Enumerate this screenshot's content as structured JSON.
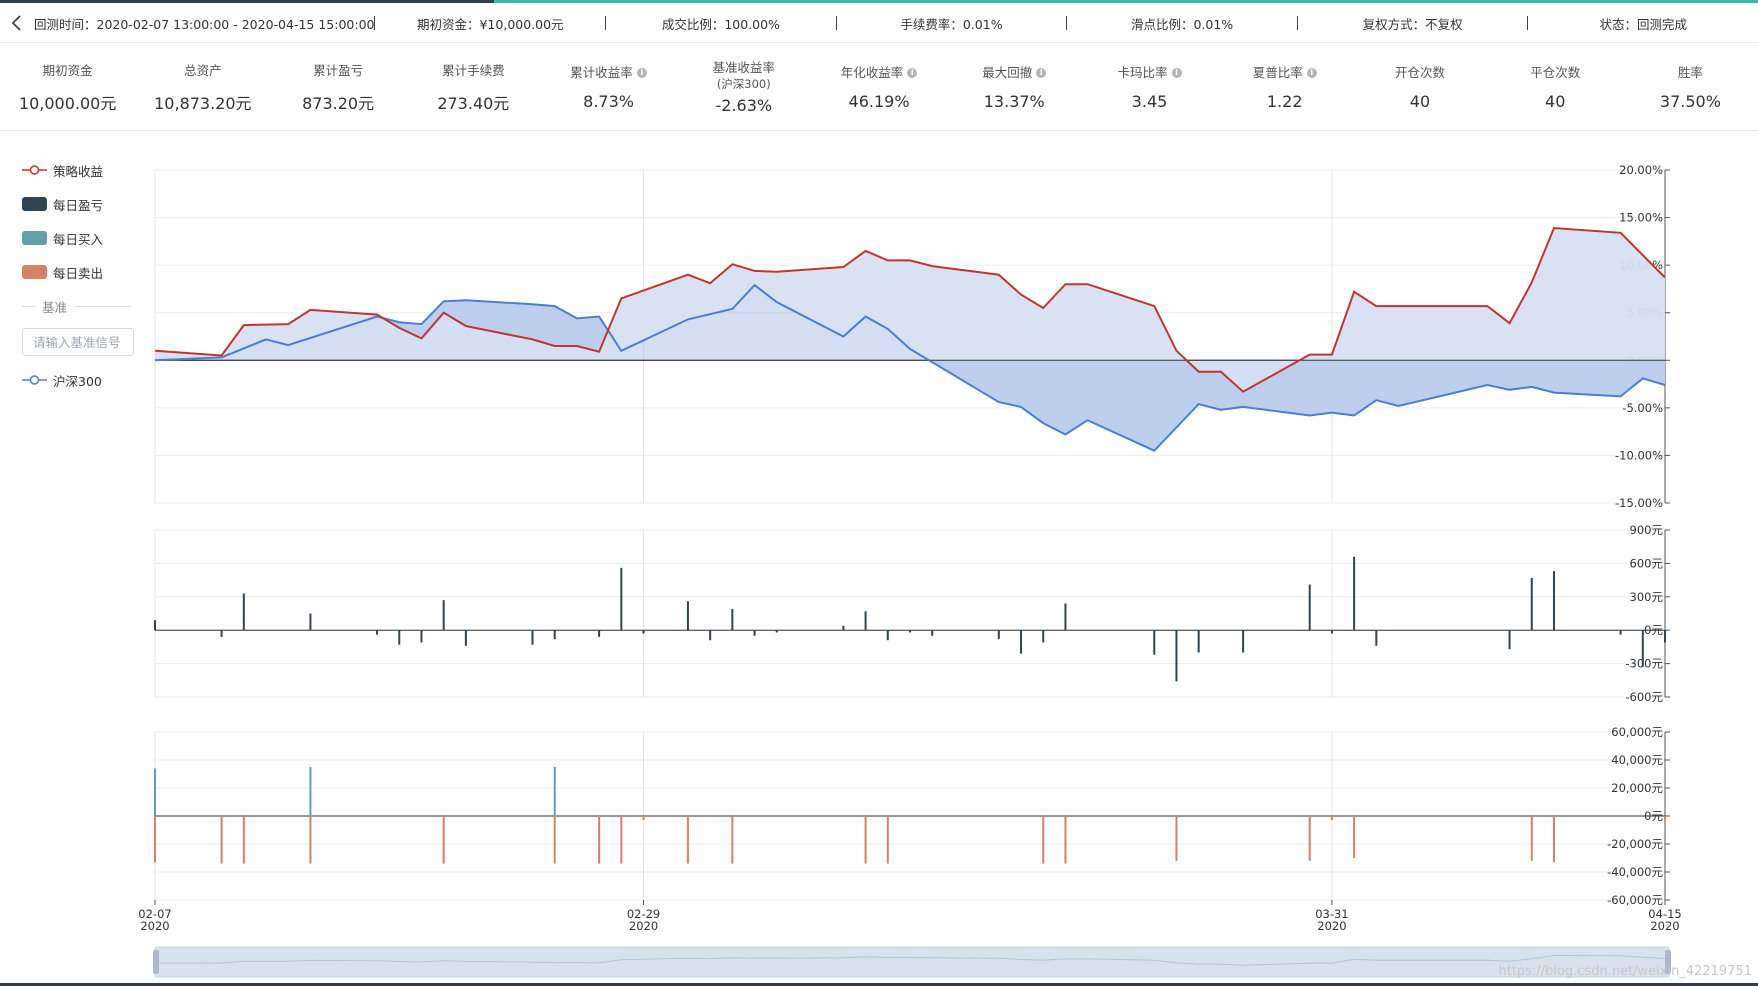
{
  "info": {
    "period": "回测时间：2020-02-07 13:00:00 - 2020-04-15 15:00:00",
    "initial_capital": "期初资金：¥10,000.00元",
    "fill_ratio": "成交比例：100.00%",
    "fee_rate": "手续费率：0.01%",
    "slippage": "滑点比例：0.01%",
    "adjust_mode": "复权方式：不复权",
    "status": "状态：回测完成"
  },
  "stats": [
    {
      "label": "期初资金",
      "value": "10,000.00元",
      "info": false
    },
    {
      "label": "总资产",
      "value": "10,873.20元",
      "info": false
    },
    {
      "label": "累计盈亏",
      "value": "873.20元",
      "info": false
    },
    {
      "label": "累计手续费",
      "value": "273.40元",
      "info": false
    },
    {
      "label": "累计收益率",
      "value": "8.73%",
      "info": true
    },
    {
      "label": "基准收益率",
      "sub": "(沪深300)",
      "value": "-2.63%",
      "info": false
    },
    {
      "label": "年化收益率",
      "value": "46.19%",
      "info": true
    },
    {
      "label": "最大回撤",
      "value": "13.37%",
      "info": true
    },
    {
      "label": "卡玛比率",
      "value": "3.45",
      "info": true
    },
    {
      "label": "夏普比率",
      "value": "1.22",
      "info": true
    },
    {
      "label": "开仓次数",
      "value": "40",
      "info": false
    },
    {
      "label": "平仓次数",
      "value": "40",
      "info": false
    },
    {
      "label": "胜率",
      "value": "37.50%",
      "info": false
    }
  ],
  "legend": {
    "strategy": "策略收益",
    "daily_pnl": "每日盈亏",
    "daily_buy": "每日买入",
    "daily_sell": "每日卖出",
    "benchmark_section": "基准",
    "benchmark_placeholder": "请输入基准信号",
    "benchmark": "沪深300"
  },
  "colors": {
    "strategy": "#c23531",
    "benchmark": "#4a7fd4",
    "area": "#d6e0f2",
    "pnl": "#2f4554",
    "buy": "#61a0a8",
    "sell": "#d48265"
  },
  "watermark": "https://blog.csdn.net/weixin_42219751",
  "chart_data": [
    {
      "type": "line",
      "x_ticks": [
        {
          "index": 0,
          "date": "02-07",
          "year": "2020"
        },
        {
          "index": 22,
          "date": "02-29",
          "year": "2020"
        },
        {
          "index": 53,
          "date": "03-31",
          "year": "2020"
        },
        {
          "index": 68,
          "date": "04-15",
          "year": "2020"
        }
      ],
      "x_count": 69,
      "ylim": [
        -15,
        20
      ],
      "yticks": [
        20,
        15,
        10,
        5,
        0,
        -5,
        -10,
        -15
      ],
      "ytick_labels": [
        "20.00%",
        "15.00%",
        "10.00%",
        "5.00%",
        "0.00%",
        "-5.00%",
        "-10.00%",
        "-15.00%"
      ],
      "series": [
        {
          "name": "策略收益",
          "points": [
            [
              0,
              1
            ],
            [
              3,
              0.5
            ],
            [
              4,
              3.7
            ],
            [
              6,
              3.8
            ],
            [
              7,
              5.3
            ],
            [
              10,
              4.8
            ],
            [
              11,
              3.4
            ],
            [
              12,
              2.3
            ],
            [
              13,
              5
            ],
            [
              14,
              3.6
            ],
            [
              17,
              2.2
            ],
            [
              18,
              1.5
            ],
            [
              19,
              1.5
            ],
            [
              20,
              0.9
            ],
            [
              21,
              6.5
            ],
            [
              24,
              9
            ],
            [
              25,
              8.1
            ],
            [
              26,
              10.1
            ],
            [
              27,
              9.4
            ],
            [
              28,
              9.3
            ],
            [
              31,
              9.8
            ],
            [
              32,
              11.5
            ],
            [
              33,
              10.5
            ],
            [
              34,
              10.5
            ],
            [
              35,
              9.9
            ],
            [
              38,
              9
            ],
            [
              39,
              6.9
            ],
            [
              40,
              5.5
            ],
            [
              41,
              8
            ],
            [
              42,
              8
            ],
            [
              45,
              5.7
            ],
            [
              46,
              1
            ],
            [
              47,
              -1.2
            ],
            [
              48,
              -1.2
            ],
            [
              49,
              -3.3
            ],
            [
              52,
              0.6
            ],
            [
              53,
              0.6
            ],
            [
              54,
              7.2
            ],
            [
              55,
              5.7
            ],
            [
              59,
              5.7
            ],
            [
              60,
              5.7
            ],
            [
              61,
              3.9
            ],
            [
              62,
              8.2
            ],
            [
              63,
              13.9
            ],
            [
              66,
              13.4
            ],
            [
              68,
              8.7
            ]
          ]
        },
        {
          "name": "沪深300",
          "points": [
            [
              0,
              0
            ],
            [
              3,
              0.3
            ],
            [
              5,
              2.2
            ],
            [
              6,
              1.6
            ],
            [
              10,
              4.6
            ],
            [
              11,
              4
            ],
            [
              12,
              3.8
            ],
            [
              13,
              6.2
            ],
            [
              14,
              6.3
            ],
            [
              17,
              5.9
            ],
            [
              18,
              5.7
            ],
            [
              19,
              4.4
            ],
            [
              20,
              4.6
            ],
            [
              21,
              1
            ],
            [
              24,
              4.3
            ],
            [
              26,
              5.4
            ],
            [
              27,
              7.9
            ],
            [
              28,
              6.1
            ],
            [
              31,
              2.5
            ],
            [
              32,
              4.6
            ],
            [
              33,
              3.3
            ],
            [
              34,
              1.2
            ],
            [
              35,
              -0.2
            ],
            [
              38,
              -4.4
            ],
            [
              39,
              -4.9
            ],
            [
              40,
              -6.6
            ],
            [
              41,
              -7.8
            ],
            [
              42,
              -6.3
            ],
            [
              45,
              -9.5
            ],
            [
              47,
              -4.6
            ],
            [
              48,
              -5.2
            ],
            [
              49,
              -4.9
            ],
            [
              52,
              -5.8
            ],
            [
              53,
              -5.5
            ],
            [
              54,
              -5.8
            ],
            [
              55,
              -4.2
            ],
            [
              56,
              -4.8
            ],
            [
              60,
              -2.6
            ],
            [
              61,
              -3.1
            ],
            [
              62,
              -2.8
            ],
            [
              63,
              -3.4
            ],
            [
              66,
              -3.8
            ],
            [
              67,
              -1.9
            ],
            [
              68,
              -2.6
            ]
          ]
        }
      ]
    },
    {
      "type": "bar",
      "series_name": "每日盈亏",
      "ylim": [
        -600,
        900
      ],
      "yticks": [
        900,
        600,
        300,
        0,
        -300,
        -600
      ],
      "ytick_labels": [
        "900元",
        "600元",
        "300元",
        "0元",
        "-300元",
        "-600元"
      ],
      "points": [
        [
          0,
          90
        ],
        [
          3,
          -60
        ],
        [
          4,
          330
        ],
        [
          7,
          150
        ],
        [
          10,
          -40
        ],
        [
          11,
          -130
        ],
        [
          12,
          -110
        ],
        [
          13,
          270
        ],
        [
          14,
          -140
        ],
        [
          17,
          -130
        ],
        [
          18,
          -80
        ],
        [
          20,
          -60
        ],
        [
          21,
          560
        ],
        [
          22,
          -30
        ],
        [
          24,
          260
        ],
        [
          25,
          -90
        ],
        [
          26,
          190
        ],
        [
          27,
          -50
        ],
        [
          28,
          -20
        ],
        [
          31,
          40
        ],
        [
          32,
          170
        ],
        [
          33,
          -90
        ],
        [
          34,
          -20
        ],
        [
          35,
          -50
        ],
        [
          38,
          -80
        ],
        [
          39,
          -210
        ],
        [
          40,
          -110
        ],
        [
          41,
          240
        ],
        [
          45,
          -220
        ],
        [
          46,
          -460
        ],
        [
          47,
          -200
        ],
        [
          49,
          -200
        ],
        [
          52,
          410
        ],
        [
          53,
          -30
        ],
        [
          54,
          660
        ],
        [
          55,
          -140
        ],
        [
          61,
          -170
        ],
        [
          62,
          470
        ],
        [
          63,
          530
        ],
        [
          66,
          -40
        ],
        [
          67,
          -330
        ],
        [
          68,
          -110
        ]
      ]
    },
    {
      "type": "bar",
      "series": [
        {
          "name": "每日买入"
        },
        {
          "name": "每日卖出"
        }
      ],
      "ylim": [
        -60000,
        60000
      ],
      "yticks": [
        60000,
        40000,
        20000,
        0,
        -20000,
        -40000,
        -60000
      ],
      "ytick_labels": [
        "60,000元",
        "40,000元",
        "20,000元",
        "0元",
        "-20,000元",
        "-40,000元",
        "-60,000元"
      ],
      "buy_points": [
        [
          0,
          34000
        ],
        [
          7,
          35000
        ],
        [
          18,
          35000
        ]
      ],
      "sell_points": [
        [
          0,
          -33000
        ],
        [
          3,
          -34000
        ],
        [
          4,
          -34000
        ],
        [
          7,
          -34000
        ],
        [
          13,
          -34000
        ],
        [
          18,
          -34000
        ],
        [
          20,
          -34000
        ],
        [
          21,
          -34000
        ],
        [
          22,
          -3000
        ],
        [
          24,
          -34000
        ],
        [
          26,
          -34000
        ],
        [
          32,
          -34000
        ],
        [
          33,
          -34000
        ],
        [
          40,
          -34000
        ],
        [
          41,
          -34000
        ],
        [
          46,
          -32000
        ],
        [
          52,
          -32000
        ],
        [
          53,
          -3000
        ],
        [
          54,
          -30000
        ],
        [
          62,
          -32000
        ],
        [
          63,
          -33000
        ],
        [
          68,
          -3000
        ]
      ]
    }
  ]
}
